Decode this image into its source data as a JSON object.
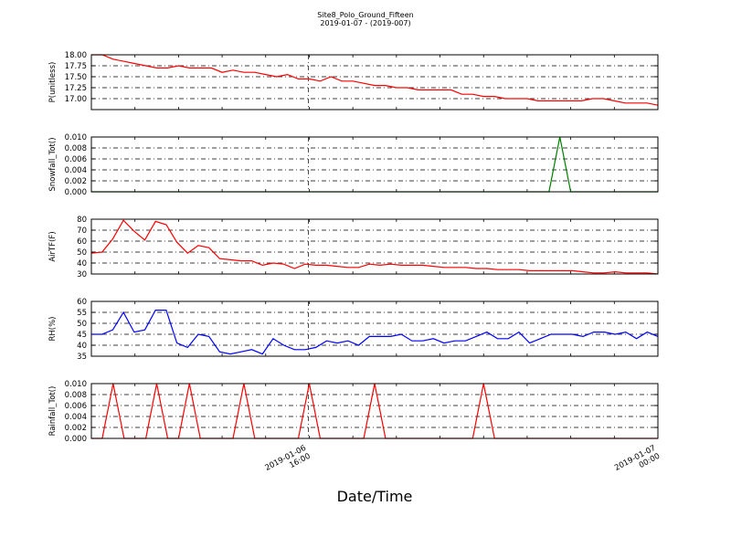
{
  "title_line1": "Site8_Polo_Ground_Fifteen",
  "title_line2": "2019-01-07 - (2019-007)",
  "xlabel": "Date/Time",
  "chart_data": [
    {
      "type": "line",
      "ylabel": "P(unitless)",
      "ylim": [
        16.75,
        18.0
      ],
      "yticks": [
        "17.00",
        "17.25",
        "17.50",
        "17.75",
        "18.00"
      ],
      "ytick_values": [
        17.0,
        17.25,
        17.5,
        17.75,
        18.0
      ],
      "color": "#ff0000",
      "grid": true,
      "values": [
        18.0,
        18.0,
        17.9,
        17.85,
        17.8,
        17.75,
        17.7,
        17.7,
        17.75,
        17.7,
        17.7,
        17.7,
        17.6,
        17.65,
        17.6,
        17.6,
        17.55,
        17.5,
        17.55,
        17.45,
        17.45,
        17.4,
        17.5,
        17.4,
        17.4,
        17.35,
        17.3,
        17.3,
        17.25,
        17.25,
        17.2,
        17.2,
        17.2,
        17.2,
        17.1,
        17.1,
        17.05,
        17.05,
        17.0,
        17.0,
        17.0,
        16.95,
        16.95,
        16.95,
        16.95,
        16.95,
        17.0,
        17.0,
        16.95,
        16.9,
        16.9,
        16.9,
        16.85
      ]
    },
    {
      "type": "line",
      "ylabel": "Snowfall_Tot()",
      "ylim": [
        0,
        0.01
      ],
      "yticks": [
        "0.000",
        "0.002",
        "0.004",
        "0.006",
        "0.008",
        "0.010"
      ],
      "ytick_values": [
        0,
        0.002,
        0.004,
        0.006,
        0.008,
        0.01
      ],
      "color": "#008000",
      "grid": true,
      "values": [
        0,
        0,
        0,
        0,
        0,
        0,
        0,
        0,
        0,
        0,
        0,
        0,
        0,
        0,
        0,
        0,
        0,
        0,
        0,
        0,
        0,
        0,
        0,
        0,
        0,
        0,
        0,
        0,
        0,
        0,
        0,
        0,
        0,
        0,
        0,
        0,
        0,
        0,
        0,
        0,
        0,
        0,
        0,
        0.01,
        0,
        0,
        0,
        0,
        0,
        0,
        0,
        0,
        0
      ]
    },
    {
      "type": "line",
      "ylabel": "AirTF(F)",
      "ylim": [
        30,
        80
      ],
      "yticks": [
        "30",
        "40",
        "50",
        "60",
        "70",
        "80"
      ],
      "ytick_values": [
        30,
        40,
        50,
        60,
        70,
        80
      ],
      "color": "#ff0000",
      "grid": true,
      "values": [
        49,
        50,
        62,
        79,
        69,
        61,
        78,
        75,
        59,
        49,
        56,
        54,
        44,
        43,
        42,
        42,
        38,
        40,
        39,
        35,
        39,
        38,
        38,
        37,
        36,
        36,
        39,
        38,
        39,
        38,
        38,
        38,
        37,
        36,
        36,
        36,
        35,
        35,
        34,
        34,
        34,
        33,
        33,
        33,
        33,
        33,
        32,
        31,
        31,
        32,
        31,
        31,
        31,
        30
      ]
    },
    {
      "type": "line",
      "ylabel": "RH(%)",
      "ylim": [
        35,
        60
      ],
      "yticks": [
        "35",
        "40",
        "45",
        "50",
        "55",
        "60"
      ],
      "ytick_values": [
        35,
        40,
        45,
        50,
        55,
        60
      ],
      "color": "#0000ff",
      "grid": true,
      "values": [
        45,
        45,
        47,
        55,
        46,
        47,
        56,
        56,
        41,
        39,
        45,
        44,
        37,
        36,
        37,
        38,
        36,
        43,
        40,
        38,
        38,
        39,
        42,
        41,
        42,
        40,
        44,
        44,
        44,
        45,
        42,
        42,
        43,
        41,
        42,
        42,
        44,
        46,
        43,
        43,
        46,
        41,
        43,
        45,
        45,
        45,
        44,
        46,
        46,
        45,
        46,
        43,
        46,
        44
      ]
    },
    {
      "type": "line",
      "ylabel": "Rainfall_Tot()",
      "ylim": [
        0,
        0.01
      ],
      "yticks": [
        "0.000",
        "0.002",
        "0.004",
        "0.006",
        "0.008",
        "0.010"
      ],
      "ytick_values": [
        0,
        0.002,
        0.004,
        0.006,
        0.008,
        0.01
      ],
      "color": "#ff0000",
      "grid": true,
      "values": [
        0,
        0,
        0.01,
        0,
        0,
        0,
        0.01,
        0,
        0,
        0.01,
        0,
        0,
        0,
        0,
        0.01,
        0,
        0,
        0,
        0,
        0,
        0.01,
        0,
        0,
        0,
        0,
        0,
        0.01,
        0,
        0,
        0,
        0,
        0,
        0,
        0,
        0,
        0,
        0.01,
        0,
        0,
        0,
        0,
        0,
        0,
        0,
        0,
        0,
        0,
        0,
        0,
        0,
        0,
        0,
        0
      ]
    }
  ],
  "x_ticks": [
    {
      "line1": "2019-01-06",
      "line2": "16:00",
      "pos": 0.383
    },
    {
      "line1": "2019-01-07",
      "line2": "00:00",
      "pos": 1.0
    }
  ]
}
